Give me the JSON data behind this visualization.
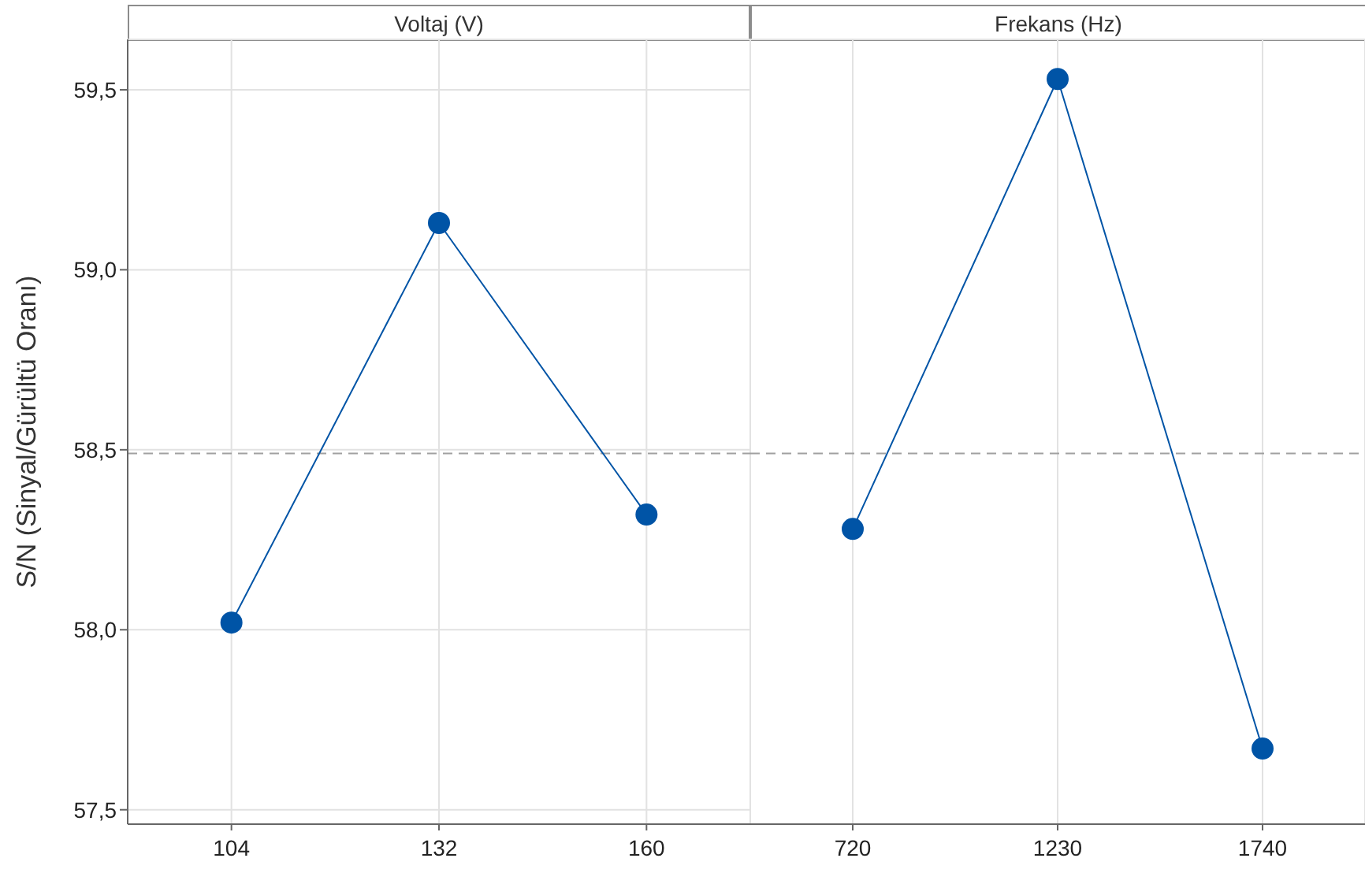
{
  "chart_data": [
    {
      "type": "line",
      "title": "Voltaj (V)",
      "ylabel": "S/N (Sinyal/Gürültü Oranı)",
      "categories": [
        "104",
        "132",
        "160"
      ],
      "values": [
        58.02,
        59.13,
        58.32
      ],
      "color": "#0054a6",
      "ylim": [
        57.46,
        59.64
      ],
      "yticks": [
        {
          "value": 57.5,
          "label": "57,5"
        },
        {
          "value": 58.0,
          "label": "58,0"
        },
        {
          "value": 58.5,
          "label": "58,5"
        },
        {
          "value": 59.0,
          "label": "59,0"
        },
        {
          "value": 59.5,
          "label": "59,5"
        }
      ],
      "grid": true,
      "marker": "circle",
      "line_style": "solid",
      "ref_lines": [
        {
          "axis": "y",
          "value": 58.49,
          "color": "#a0a0a0",
          "line_style": "dashed"
        }
      ]
    },
    {
      "type": "line",
      "title": "Frekans (Hz)",
      "categories": [
        "720",
        "1230",
        "1740"
      ],
      "values": [
        58.28,
        59.53,
        57.67
      ],
      "color": "#0054a6",
      "ylim": [
        57.46,
        59.64
      ],
      "yticks": [
        {
          "value": 57.5,
          "label": null
        },
        {
          "value": 58.0,
          "label": null
        },
        {
          "value": 58.5,
          "label": null
        },
        {
          "value": 59.0,
          "label": null
        },
        {
          "value": 59.5,
          "label": null
        }
      ],
      "tick_labels": "x",
      "grid": true,
      "marker": "circle",
      "line_style": "solid",
      "ref_lines": [
        {
          "axis": "y",
          "value": 58.49,
          "color": "#a0a0a0",
          "line_style": "dashed"
        }
      ]
    }
  ]
}
